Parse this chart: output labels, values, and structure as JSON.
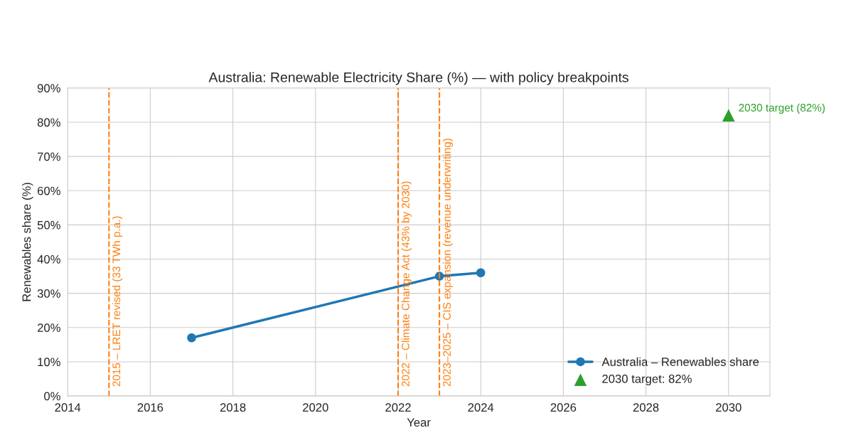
{
  "chart_data": {
    "type": "line",
    "title": "Australia: Renewable Electricity Share (%) — with policy breakpoints",
    "xlabel": "Year",
    "ylabel": "Renewables share (%)",
    "series": [
      {
        "name": "Australia – Renewables share",
        "color": "#1f77b4",
        "marker": "circle",
        "x": [
          2017,
          2023,
          2024
        ],
        "values": [
          17,
          35,
          36
        ]
      },
      {
        "name": "2030 target: 82%",
        "type": "scatter",
        "color": "#2ca02c",
        "marker": "triangle",
        "x": [
          2030
        ],
        "values": [
          82
        ]
      }
    ],
    "xlim": [
      2014,
      2031
    ],
    "xticks": [
      2014,
      2016,
      2018,
      2020,
      2022,
      2024,
      2026,
      2028,
      2030
    ],
    "ylim": [
      0,
      90
    ],
    "yticks": [
      {
        "value": 0,
        "label": "0%"
      },
      {
        "value": 10,
        "label": "10%"
      },
      {
        "value": 20,
        "label": "20%"
      },
      {
        "value": 30,
        "label": "30%"
      },
      {
        "value": 40,
        "label": "40%"
      },
      {
        "value": 50,
        "label": "50%"
      },
      {
        "value": 60,
        "label": "60%"
      },
      {
        "value": 70,
        "label": "70%"
      },
      {
        "value": 80,
        "label": "80%"
      },
      {
        "value": 90,
        "label": "90%"
      }
    ],
    "ref_lines": [
      {
        "axis": "x",
        "value": 2015,
        "label": "2015 – LRET revised (33 TWh p.a.)",
        "color": "#ff7f0e",
        "line_style": "dashed"
      },
      {
        "axis": "x",
        "value": 2022,
        "label": "2022 – Climate Change Act (43% by 2030)",
        "color": "#ff7f0e",
        "line_style": "dashed"
      },
      {
        "axis": "x",
        "value": 2023,
        "label": "2023–2025 – CIS expansion (revenue underwriting)",
        "color": "#ff7f0e",
        "line_style": "dashed"
      }
    ],
    "annotations": [
      {
        "text": "2030 target (82%)",
        "x": 2030,
        "y": 82
      }
    ],
    "grid": true,
    "legend": "bottom right"
  }
}
